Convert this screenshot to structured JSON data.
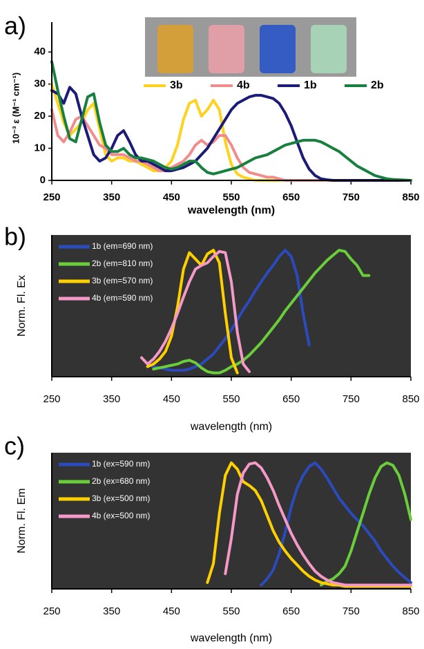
{
  "chart_data": [
    {
      "type": "line",
      "panel_label": "a)",
      "ylabel": "10⁻³ ε (M⁻¹ cm⁻¹)",
      "xlabel": "wavelength (nm)",
      "xlim": [
        250,
        850
      ],
      "xticks": [
        250,
        350,
        450,
        550,
        650,
        750,
        850
      ],
      "ylim": [
        0,
        45
      ],
      "yticks": [
        0,
        10,
        20,
        30,
        40
      ],
      "legend": "top",
      "bold_labels": true,
      "x": [
        250,
        260,
        270,
        280,
        290,
        300,
        310,
        320,
        330,
        340,
        350,
        360,
        370,
        380,
        390,
        400,
        410,
        420,
        430,
        440,
        450,
        460,
        470,
        480,
        490,
        500,
        510,
        520,
        530,
        540,
        550,
        560,
        570,
        580,
        590,
        600,
        610,
        620,
        630,
        640,
        650,
        660,
        670,
        680,
        690,
        700,
        710,
        720,
        730,
        740,
        750,
        760,
        770,
        780,
        790,
        800,
        810,
        820,
        830,
        840,
        850
      ],
      "series": [
        {
          "name": "3b",
          "color": "#ffd21f",
          "values": [
            30,
            24,
            18,
            14,
            16,
            18,
            22,
            24,
            16,
            8,
            6,
            7,
            7,
            6,
            6,
            5,
            4,
            3,
            3,
            4,
            6,
            11,
            19,
            24,
            25,
            20,
            22,
            25,
            22,
            12,
            5,
            2,
            1,
            0.5,
            0,
            0,
            0,
            0,
            0,
            0,
            0,
            0,
            0,
            0,
            0,
            0,
            0,
            0,
            0,
            0,
            0,
            0,
            0,
            0,
            0,
            0,
            0,
            0,
            0,
            0,
            0
          ]
        },
        {
          "name": "4b",
          "color": "#f28c8c",
          "values": [
            22,
            14,
            12,
            15,
            19,
            20,
            17,
            14,
            11,
            10,
            8,
            8,
            8,
            7,
            6,
            6,
            5,
            4,
            3,
            3,
            4,
            5,
            6,
            8,
            11,
            12.5,
            11,
            12,
            14,
            14,
            11,
            7,
            4,
            2.5,
            2,
            1.5,
            1,
            1,
            0.5,
            0,
            0,
            0,
            0,
            0,
            0,
            0,
            0,
            0,
            0,
            0,
            0,
            0,
            0,
            0,
            0,
            0,
            0,
            0,
            0,
            0,
            0
          ]
        },
        {
          "name": "1b",
          "color": "#1c1c78",
          "values": [
            28,
            27,
            24,
            29,
            27,
            20,
            14,
            8,
            6,
            7,
            10,
            14,
            15.5,
            12,
            8,
            6,
            6,
            5,
            4,
            3,
            3,
            3.5,
            4,
            5,
            6,
            8,
            10,
            13,
            16,
            19,
            22,
            24,
            25,
            26,
            26.5,
            26.5,
            26,
            25.5,
            24,
            21,
            17,
            12,
            7,
            3.5,
            1.5,
            0.5,
            0.2,
            0,
            0,
            0,
            0,
            0,
            0,
            0,
            0,
            0,
            0,
            0,
            0,
            0,
            0
          ]
        },
        {
          "name": "2b",
          "color": "#17803f",
          "values": [
            37,
            28,
            20,
            13,
            12,
            19,
            26,
            27,
            18,
            11,
            9,
            9,
            10,
            8,
            7,
            7,
            6.5,
            6,
            5,
            4,
            3.5,
            4,
            5,
            6,
            6,
            4,
            2.5,
            2,
            2.5,
            3,
            3.5,
            4,
            5,
            6,
            7,
            7.5,
            8,
            9,
            10,
            11,
            11.5,
            12,
            12.5,
            12.5,
            12.5,
            12,
            11,
            10,
            9,
            7.5,
            6,
            4.5,
            3.5,
            2.5,
            1.5,
            1,
            0.5,
            0.3,
            0.2,
            0.1,
            0
          ]
        }
      ]
    },
    {
      "type": "line",
      "panel_label": "b)",
      "ylabel": "Norm. Fl. Ex",
      "xlabel": "wavelength (nm)",
      "xlim": [
        250,
        850
      ],
      "xticks": [
        250,
        350,
        450,
        550,
        650,
        750,
        850
      ],
      "ylim": [
        0,
        1.12
      ],
      "legend": "upper left",
      "plot_background": "#333333",
      "x": [
        400,
        410,
        420,
        430,
        440,
        450,
        460,
        470,
        480,
        490,
        500,
        510,
        520,
        530,
        540,
        550,
        560,
        570,
        580,
        590,
        600,
        610,
        620,
        630,
        640,
        650,
        660,
        670,
        680,
        690,
        700,
        710,
        720,
        730,
        740,
        750,
        760,
        770,
        780,
        790
      ],
      "series": [
        {
          "name": "1b (em=690 nm)",
          "color": "#2b4bbd",
          "values": [
            null,
            0.1,
            0.08,
            0.07,
            0.06,
            0.05,
            0.05,
            0.05,
            0.06,
            0.08,
            0.1,
            0.14,
            0.18,
            0.24,
            0.3,
            0.37,
            0.45,
            0.53,
            0.6,
            0.68,
            0.75,
            0.82,
            0.88,
            0.95,
            1.0,
            0.95,
            0.8,
            0.5,
            0.25,
            null,
            null,
            null,
            null,
            null,
            null,
            null,
            null,
            null,
            null,
            null
          ]
        },
        {
          "name": "2b (em=810 nm)",
          "color": "#6acd3a",
          "values": [
            null,
            null,
            0.06,
            0.07,
            0.08,
            0.09,
            0.1,
            0.12,
            0.13,
            0.11,
            0.07,
            0.04,
            0.03,
            0.03,
            0.05,
            0.08,
            0.1,
            0.13,
            0.17,
            0.22,
            0.27,
            0.33,
            0.39,
            0.45,
            0.52,
            0.58,
            0.64,
            0.7,
            0.76,
            0.82,
            0.87,
            0.92,
            0.96,
            1.0,
            0.99,
            0.93,
            0.88,
            0.8,
            0.8,
            null
          ]
        },
        {
          "name": "3b (em=570 nm)",
          "color": "#ffd000",
          "values": [
            null,
            0.08,
            0.1,
            0.14,
            0.2,
            0.32,
            0.55,
            0.85,
            0.98,
            0.93,
            0.88,
            0.97,
            1.0,
            0.9,
            0.5,
            0.15,
            0.03,
            null,
            null,
            null,
            null,
            null,
            null,
            null,
            null,
            null,
            null,
            null,
            null,
            null,
            null,
            null,
            null,
            null,
            null,
            null,
            null,
            null,
            null,
            null
          ]
        },
        {
          "name": "4b (em=590 nm)",
          "color": "#f59ac8",
          "values": [
            0.15,
            0.1,
            0.14,
            0.2,
            0.28,
            0.38,
            0.5,
            0.63,
            0.75,
            0.85,
            0.88,
            0.9,
            0.95,
            0.99,
            0.98,
            0.75,
            0.35,
            0.1,
            0.04,
            null,
            null,
            null,
            null,
            null,
            null,
            null,
            null,
            null,
            null,
            null,
            null,
            null,
            null,
            null,
            null,
            null,
            null,
            null,
            null,
            null
          ]
        }
      ]
    },
    {
      "type": "line",
      "panel_label": "c)",
      "ylabel": "Norm. Fl. Em",
      "xlabel": "wavelength (nm)",
      "xlim": [
        250,
        850
      ],
      "xticks": [
        250,
        350,
        450,
        550,
        650,
        750,
        850
      ],
      "ylim": [
        0,
        1.08
      ],
      "legend": "upper left",
      "plot_background": "#333333",
      "x": [
        510,
        520,
        530,
        540,
        550,
        560,
        570,
        580,
        590,
        600,
        610,
        620,
        630,
        640,
        650,
        660,
        670,
        680,
        690,
        700,
        710,
        720,
        730,
        740,
        750,
        760,
        770,
        780,
        790,
        800,
        810,
        820,
        830,
        840,
        850
      ],
      "series": [
        {
          "name": "1b (ex=590 nm)",
          "color": "#2b4bbd",
          "values": [
            null,
            null,
            null,
            null,
            null,
            null,
            null,
            null,
            null,
            0.03,
            0.08,
            0.15,
            0.28,
            0.45,
            0.65,
            0.8,
            0.9,
            0.97,
            1.0,
            0.95,
            0.88,
            0.8,
            0.72,
            0.66,
            0.6,
            0.55,
            0.5,
            0.44,
            0.38,
            0.3,
            0.24,
            0.18,
            0.13,
            0.09,
            0.05
          ]
        },
        {
          "name": "2b (ex=680 nm)",
          "color": "#6acd3a",
          "values": [
            null,
            null,
            null,
            null,
            null,
            null,
            null,
            null,
            null,
            null,
            null,
            null,
            null,
            null,
            null,
            null,
            null,
            null,
            null,
            0.03,
            0.06,
            0.08,
            0.12,
            0.18,
            0.3,
            0.45,
            0.6,
            0.75,
            0.88,
            0.97,
            1.0,
            0.98,
            0.9,
            0.75,
            0.55
          ]
        },
        {
          "name": "3b (ex=500 nm)",
          "color": "#ffd000",
          "values": [
            0.05,
            0.2,
            0.6,
            0.9,
            1.0,
            0.95,
            0.85,
            0.82,
            0.78,
            0.7,
            0.58,
            0.46,
            0.37,
            0.3,
            0.24,
            0.19,
            0.14,
            0.1,
            0.07,
            0.05,
            0.04,
            0.03,
            0.03,
            0.02,
            0.02,
            0.02,
            0.02,
            0.02,
            0.02,
            0.02,
            0.02,
            0.02,
            0.02,
            0.02,
            0.02
          ]
        },
        {
          "name": "4b (ex=500 nm)",
          "color": "#f59ac8",
          "values": [
            null,
            null,
            null,
            0.12,
            0.4,
            0.75,
            0.92,
            0.99,
            1.0,
            0.96,
            0.88,
            0.78,
            0.66,
            0.55,
            0.44,
            0.35,
            0.27,
            0.2,
            0.14,
            0.1,
            0.07,
            0.05,
            0.04,
            0.03,
            0.03,
            0.03,
            0.03,
            0.03,
            0.03,
            0.03,
            0.03,
            0.03,
            0.03,
            0.03,
            0.03
          ]
        }
      ]
    }
  ]
}
